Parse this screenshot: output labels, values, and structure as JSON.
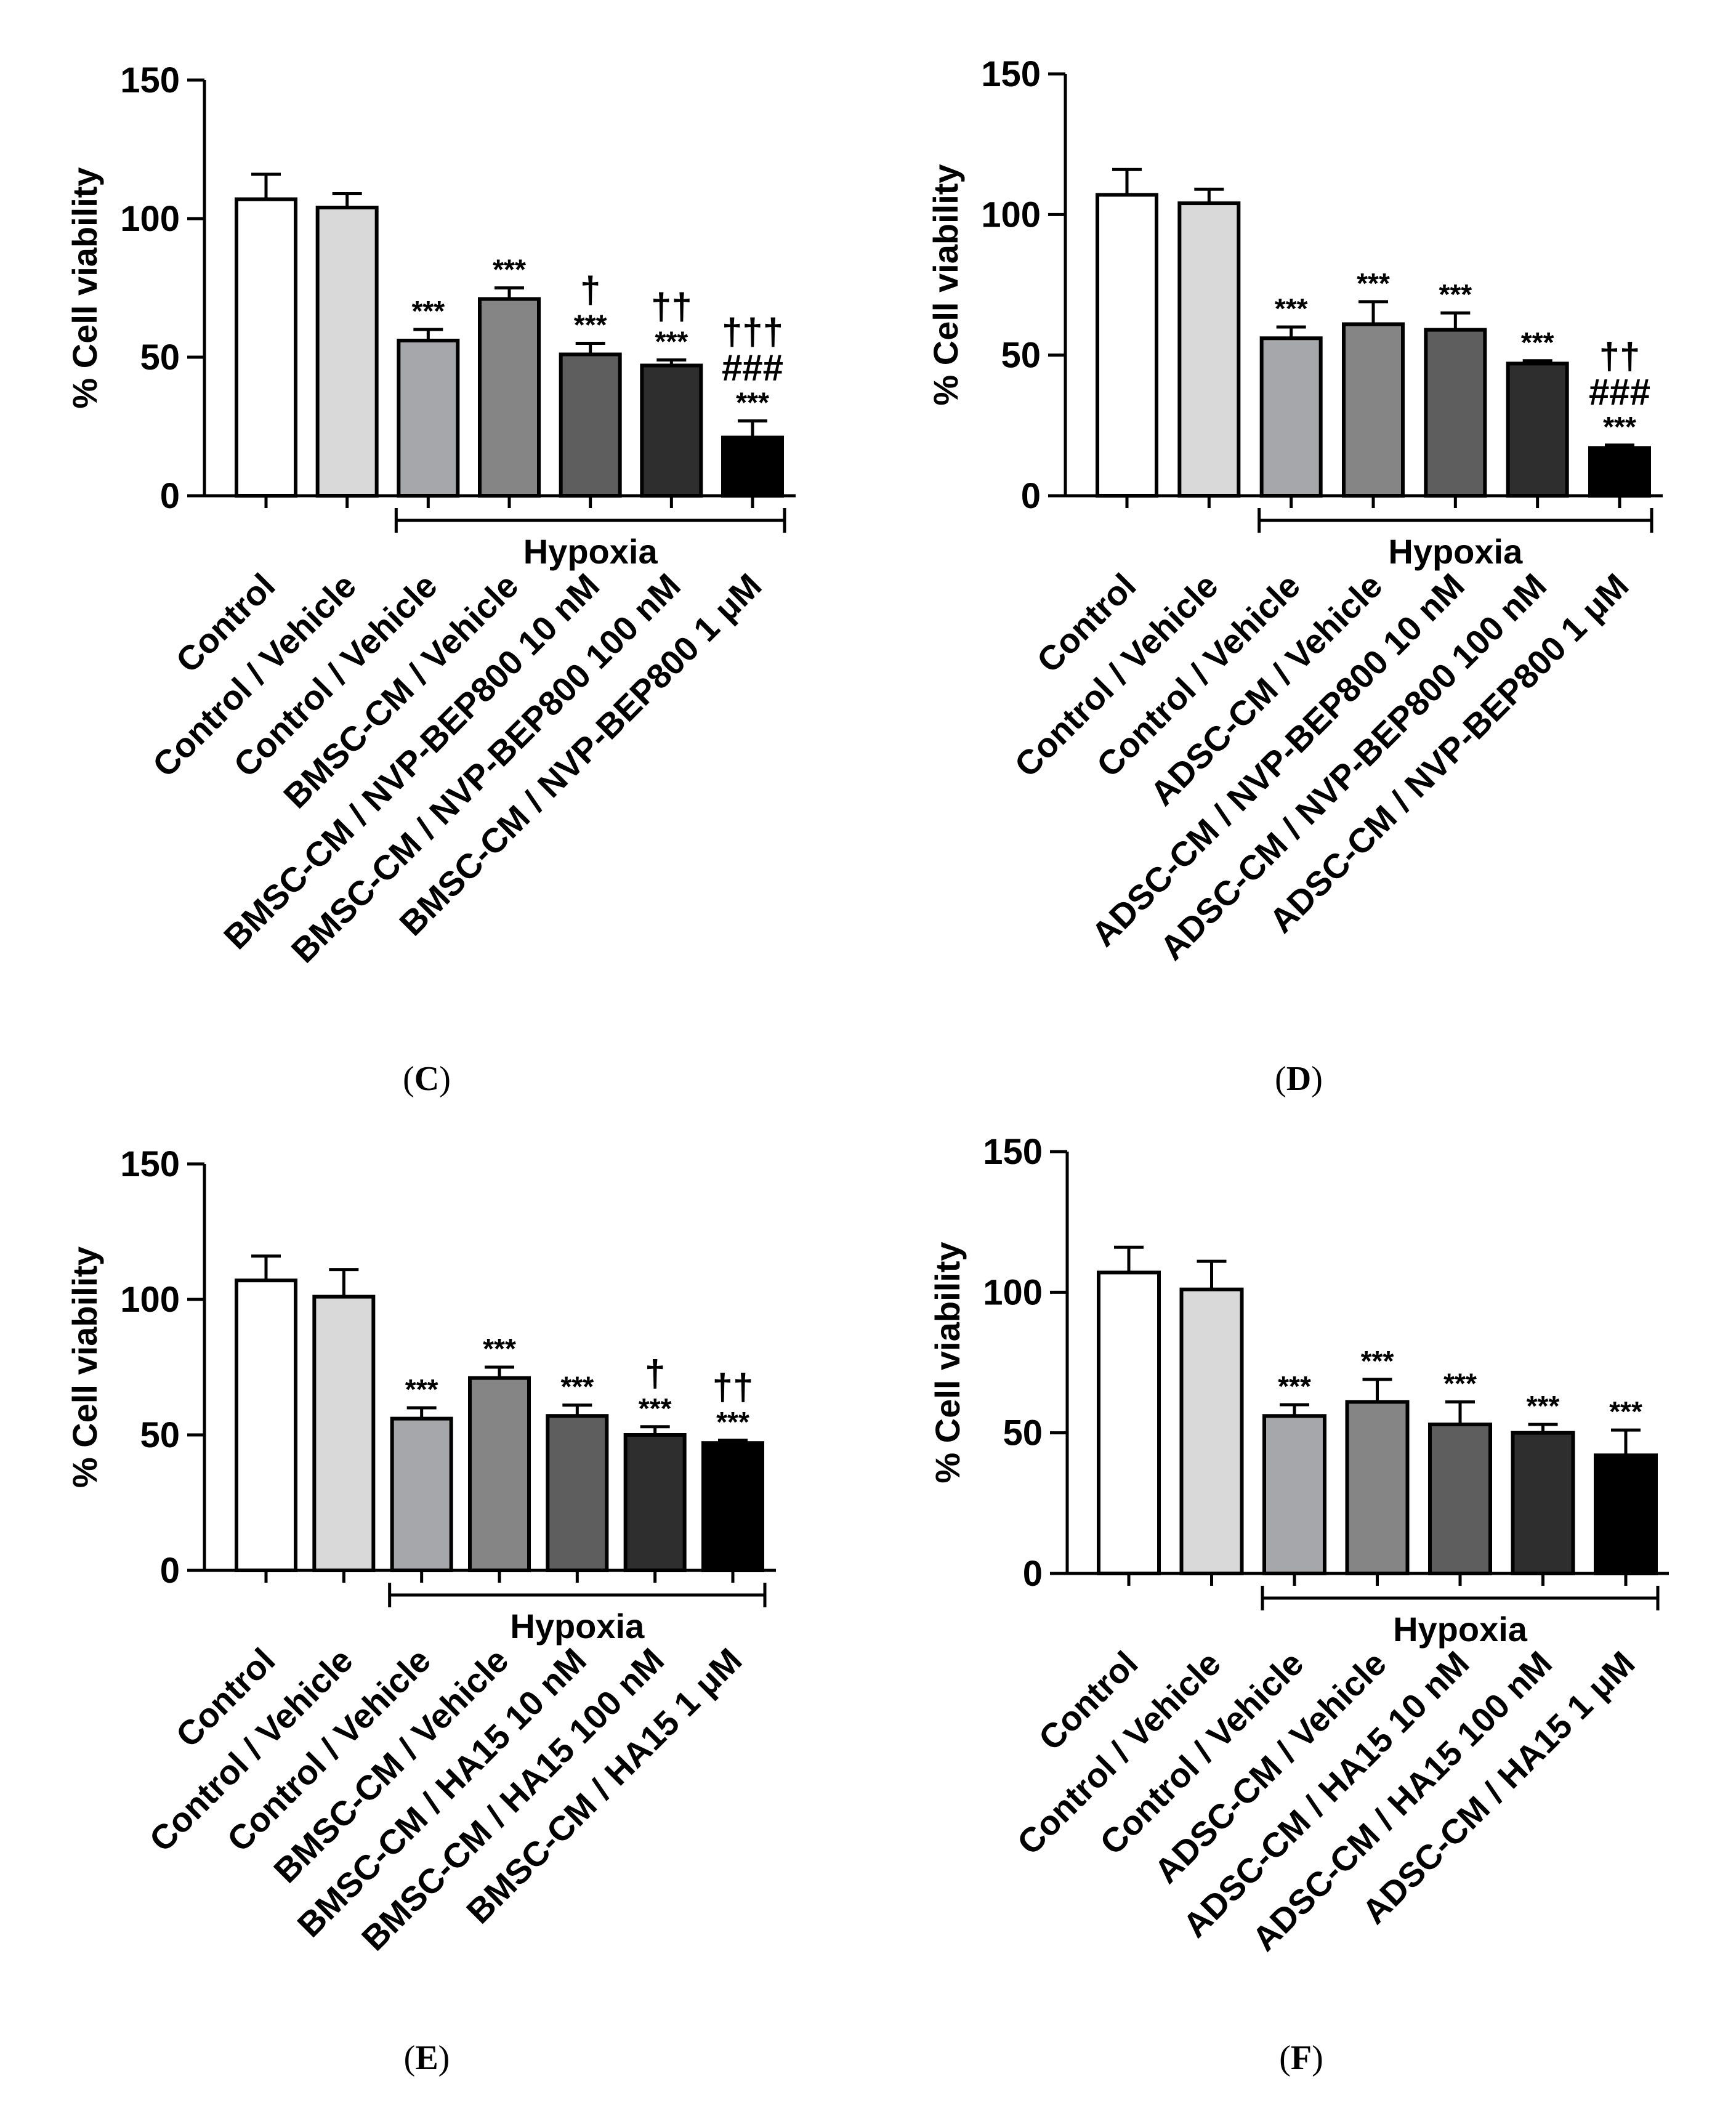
{
  "figure": {
    "panel_labels": [
      {
        "open": "(",
        "letter": "C",
        "close": ")"
      },
      {
        "open": "(",
        "letter": "D",
        "close": ")"
      },
      {
        "open": "(",
        "letter": "E",
        "close": ")"
      },
      {
        "open": "(",
        "letter": "F",
        "close": ")"
      }
    ]
  },
  "colors": {
    "bar_fills": [
      "#ffffff",
      "#d9d9d9",
      "#a6a7ab",
      "#858585",
      "#5e5e5e",
      "#2e2e2e",
      "#000000"
    ],
    "stroke": "#000000"
  },
  "chart_data": [
    {
      "type": "bar",
      "panel": "C",
      "ylabel": "% Cell viability",
      "ylim": [
        0,
        150
      ],
      "yticks": [
        0,
        50,
        100,
        150
      ],
      "categories": [
        "Control",
        "Control / Vehicle",
        "Control / Vehicle",
        "BMSC-CM / Vehicle",
        "BMSC-CM / NVP-BEP800 10 nM",
        "BMSC-CM / NVP-BEP800 100 nM",
        "BMSC-CM / NVP-BEP800 1 μM"
      ],
      "values": [
        107,
        104,
        56,
        71,
        51,
        47,
        21
      ],
      "errors": [
        9,
        5,
        4,
        4,
        4,
        2,
        6
      ],
      "annotations": [
        [],
        [],
        [
          "***"
        ],
        [
          "***"
        ],
        [
          "†",
          "***"
        ],
        [
          "††",
          "***"
        ],
        [
          "†††",
          "###",
          "***"
        ]
      ],
      "group_label": "Hypoxia",
      "group_start": 2,
      "group_end": 6
    },
    {
      "type": "bar",
      "panel": "D",
      "ylabel": "% Cell viability",
      "ylim": [
        0,
        150
      ],
      "yticks": [
        0,
        50,
        100,
        150
      ],
      "categories": [
        "Control",
        "Control / Vehicle",
        "Control / Vehicle",
        "ADSC-CM / Vehicle",
        "ADSC-CM / NVP-BEP800 10 nM",
        "ADSC-CM / NVP-BEP800 100 nM",
        "ADSC-CM / NVP-BEP800 1 μM"
      ],
      "values": [
        107,
        104,
        56,
        61,
        59,
        47,
        17
      ],
      "errors": [
        9,
        5,
        4,
        8,
        6,
        1,
        1
      ],
      "annotations": [
        [],
        [],
        [
          "***"
        ],
        [
          "***"
        ],
        [
          "***"
        ],
        [
          "***"
        ],
        [
          "††",
          "###",
          "***"
        ]
      ],
      "group_label": "Hypoxia",
      "group_start": 2,
      "group_end": 6
    },
    {
      "type": "bar",
      "panel": "E",
      "ylabel": "% Cell viability",
      "ylim": [
        0,
        150
      ],
      "yticks": [
        0,
        50,
        100,
        150
      ],
      "categories": [
        "Control",
        "Control / Vehicle",
        "Control / Vehicle",
        "BMSC-CM / Vehicle",
        "BMSC-CM / HA15 10 nM",
        "BMSC-CM / HA15 100 nM",
        "BMSC-CM / HA15 1 μM"
      ],
      "values": [
        107,
        101,
        56,
        71,
        57,
        50,
        47
      ],
      "errors": [
        9,
        10,
        4,
        4,
        4,
        3,
        1
      ],
      "annotations": [
        [],
        [],
        [
          "***"
        ],
        [
          "***"
        ],
        [
          "***"
        ],
        [
          "†",
          "***"
        ],
        [
          "††",
          "***"
        ]
      ],
      "group_label": "Hypoxia",
      "group_start": 2,
      "group_end": 6
    },
    {
      "type": "bar",
      "panel": "F",
      "ylabel": "% Cell viability",
      "ylim": [
        0,
        150
      ],
      "yticks": [
        0,
        50,
        100,
        150
      ],
      "categories": [
        "Control",
        "Control / Vehicle",
        "Control / Vehicle",
        "ADSC-CM / Vehicle",
        "ADSC-CM / HA15 10 nM",
        "ADSC-CM / HA15 100 nM",
        "ADSC-CM / HA15 1 μM"
      ],
      "values": [
        107,
        101,
        56,
        61,
        53,
        50,
        42
      ],
      "errors": [
        9,
        10,
        4,
        8,
        8,
        3,
        9
      ],
      "annotations": [
        [],
        [],
        [
          "***"
        ],
        [
          "***"
        ],
        [
          "***"
        ],
        [
          "***"
        ],
        [
          "***"
        ]
      ],
      "group_label": "Hypoxia",
      "group_start": 2,
      "group_end": 6
    }
  ]
}
